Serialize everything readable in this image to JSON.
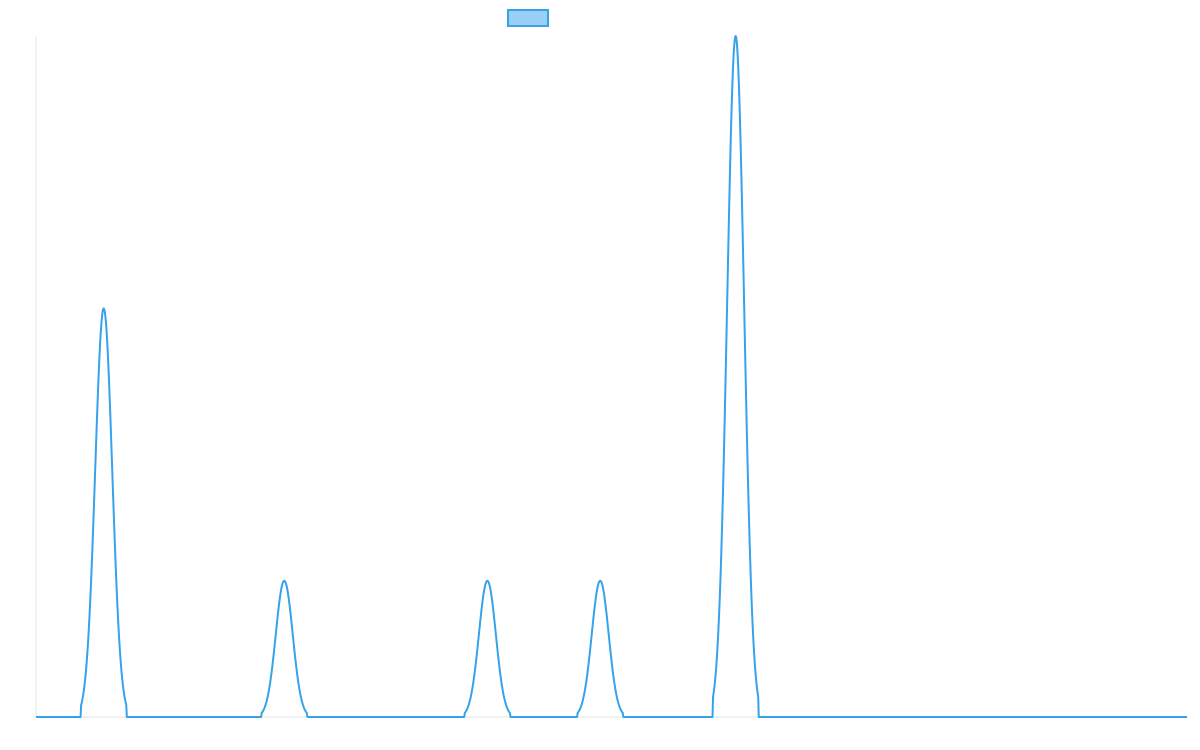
{
  "chart_data": {
    "type": "line",
    "title": "",
    "xlabel": "",
    "ylabel": "",
    "grid": false,
    "legend": {
      "placement": "top-center",
      "label": ""
    },
    "xlim": [
      0,
      1020
    ],
    "ylim": [
      0,
      1
    ],
    "series": [
      {
        "color": "#36a2eb",
        "fill": "#9ad0f5",
        "peaks": [
          {
            "x": 60,
            "y": 0.6,
            "half_width": 20
          },
          {
            "x": 220,
            "y": 0.2,
            "half_width": 20
          },
          {
            "x": 400,
            "y": 0.2,
            "half_width": 20
          },
          {
            "x": 500,
            "y": 0.2,
            "half_width": 20
          },
          {
            "x": 620,
            "y": 1.0,
            "half_width": 20
          }
        ]
      }
    ]
  }
}
